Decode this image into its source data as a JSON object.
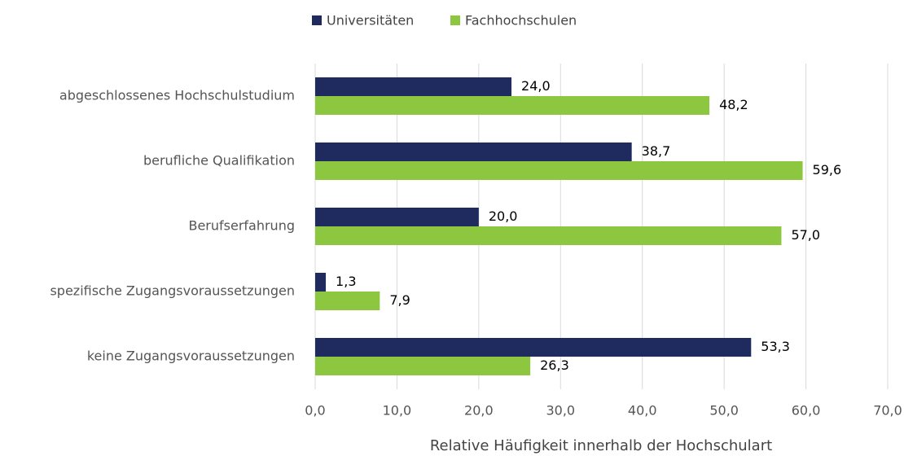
{
  "chart_data": {
    "type": "bar",
    "orientation": "horizontal",
    "x_label": "Relative Häufigkeit innerhalb der Hochschulart",
    "categories": [
      "abgeschlossenes Hochschulstudium",
      "berufliche Qualifikation",
      "Berufserfahrung",
      "spezifische Zugangsvoraussetzungen",
      "keine Zugangsvoraussetzungen"
    ],
    "series": [
      {
        "name": "Universitäten",
        "color": "#1f2a5e",
        "values": [
          24.0,
          38.7,
          20.0,
          1.3,
          53.3
        ],
        "value_labels": [
          "24,0",
          "38,7",
          "20,0",
          "1,3",
          "53,3"
        ]
      },
      {
        "name": "Fachhochschulen",
        "color": "#8dc63f",
        "values": [
          48.2,
          59.6,
          57.0,
          7.9,
          26.3
        ],
        "value_labels": [
          "48,2",
          "59,6",
          "57,0",
          "7,9",
          "26,3"
        ]
      }
    ],
    "xlim": [
      0,
      70
    ],
    "xticks": [
      {
        "value": 0,
        "label": "0,0"
      },
      {
        "value": 10,
        "label": "10,0"
      },
      {
        "value": 20,
        "label": "20,0"
      },
      {
        "value": 30,
        "label": "30,0"
      },
      {
        "value": 40,
        "label": "40,0"
      },
      {
        "value": 50,
        "label": "50,0"
      },
      {
        "value": 60,
        "label": "60,0"
      },
      {
        "value": 70,
        "label": "70,0"
      }
    ],
    "grid": true,
    "legend": "top"
  }
}
